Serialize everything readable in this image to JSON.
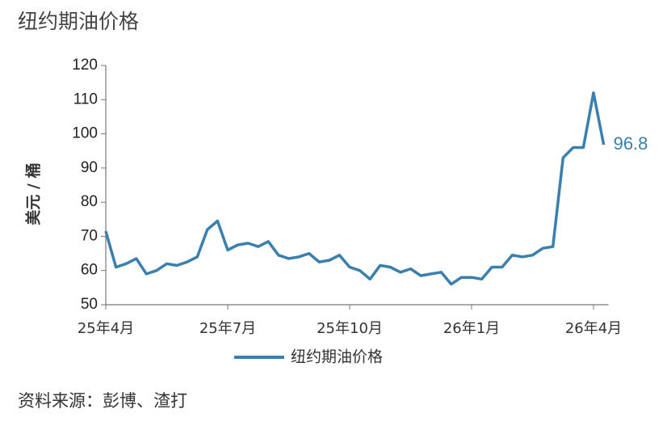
{
  "chart_data": {
    "type": "line",
    "title": "纽约期油价格",
    "y_label": "美元 / 桶",
    "source": "资料来源：彭博、渣打",
    "categories": [
      "25年4月",
      null,
      null,
      null,
      null,
      null,
      null,
      null,
      null,
      null,
      null,
      null,
      "25年7月",
      null,
      null,
      null,
      null,
      null,
      null,
      null,
      null,
      null,
      null,
      null,
      "25年10月",
      null,
      null,
      null,
      null,
      null,
      null,
      null,
      null,
      null,
      null,
      null,
      "26年1月",
      null,
      null,
      null,
      null,
      null,
      null,
      null,
      null,
      null,
      null,
      null,
      "26年4月",
      null
    ],
    "series": [
      {
        "name": "纽约期油价格",
        "color": "#3a7fae",
        "values": [
          71.5,
          61,
          62,
          63.5,
          59,
          60,
          62,
          61.5,
          62.5,
          64,
          72,
          74.5,
          66,
          67.5,
          68,
          67,
          68.5,
          64.5,
          63.5,
          64,
          65,
          62.5,
          63,
          64.5,
          61,
          60,
          57.5,
          61.5,
          61,
          59.5,
          60.5,
          58.5,
          59,
          59.5,
          56,
          58,
          58,
          57.5,
          61,
          61,
          64.5,
          64,
          64.5,
          66.5,
          67,
          93,
          96,
          96,
          112,
          96.8
        ]
      }
    ],
    "ylim": [
      50,
      120
    ],
    "yticks": [
      50,
      60,
      70,
      80,
      90,
      100,
      110,
      120
    ],
    "grid": false,
    "legend": "bottom"
  }
}
